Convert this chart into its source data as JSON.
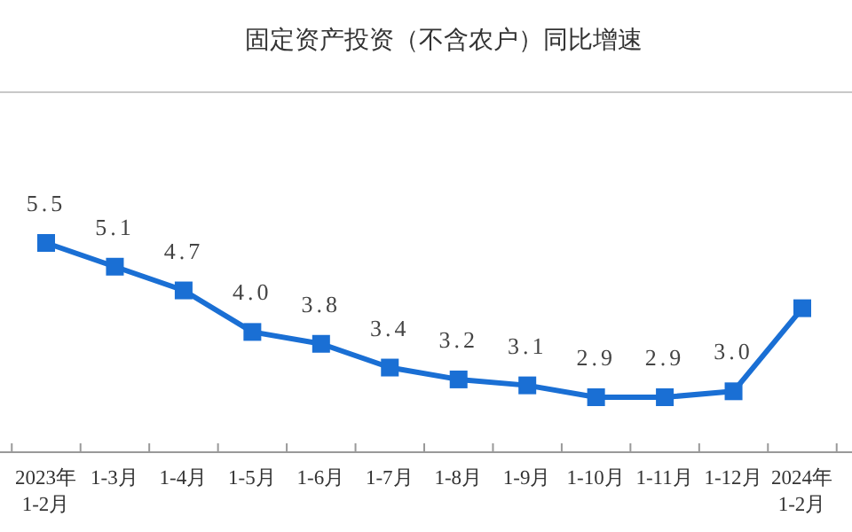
{
  "chart_data": {
    "type": "line",
    "title": "固定资产投资（不含农户）同比增速",
    "categories": [
      "2023年 1-2月",
      "1-3月",
      "1-4月",
      "1-5月",
      "1-6月",
      "1-7月",
      "1-8月",
      "1-9月",
      "1-10月",
      "1-11月",
      "1-12月",
      "2024年 1-2月"
    ],
    "series": [
      {
        "color": "#1a6fd4",
        "values": [
          5.5,
          5.1,
          4.7,
          4.0,
          3.8,
          3.4,
          3.2,
          3.1,
          2.9,
          2.9,
          3.0,
          4.4
        ],
        "value_labels": [
          "5.5",
          "5.1",
          "4.7",
          "4.0",
          "3.8",
          "3.4",
          "3.2",
          "3.1",
          "2.9",
          "2.9",
          "3.0",
          null
        ]
      }
    ],
    "marker": "square"
  }
}
